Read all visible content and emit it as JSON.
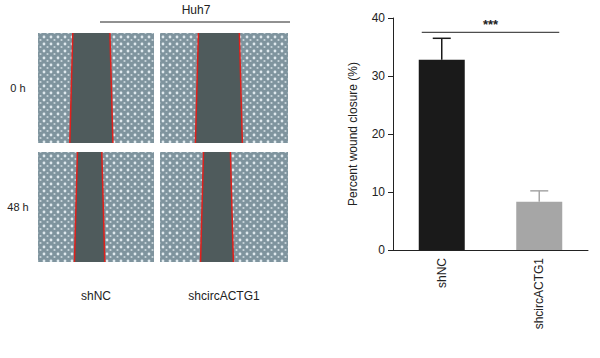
{
  "chart_data": {
    "type": "bar",
    "categories": [
      "shNC",
      "shcircACTG1"
    ],
    "values": [
      32.8,
      8.3
    ],
    "errors": [
      3.7,
      1.9
    ],
    "colors": [
      "#1a1a1a",
      "#a6a6a6"
    ],
    "y_label": "Percent wound closure (%)",
    "ylim": [
      0,
      40
    ],
    "yticks": [
      0,
      10,
      20,
      30,
      40
    ],
    "grid": false,
    "annotations": [
      {
        "text": "***",
        "between": [
          "shNC",
          "shcircACTG1"
        ]
      }
    ]
  },
  "image_panel": {
    "title": "Huh7",
    "rows": [
      "0 h",
      "48 h"
    ],
    "columns": [
      "shNC",
      "shcircACTG1"
    ]
  }
}
